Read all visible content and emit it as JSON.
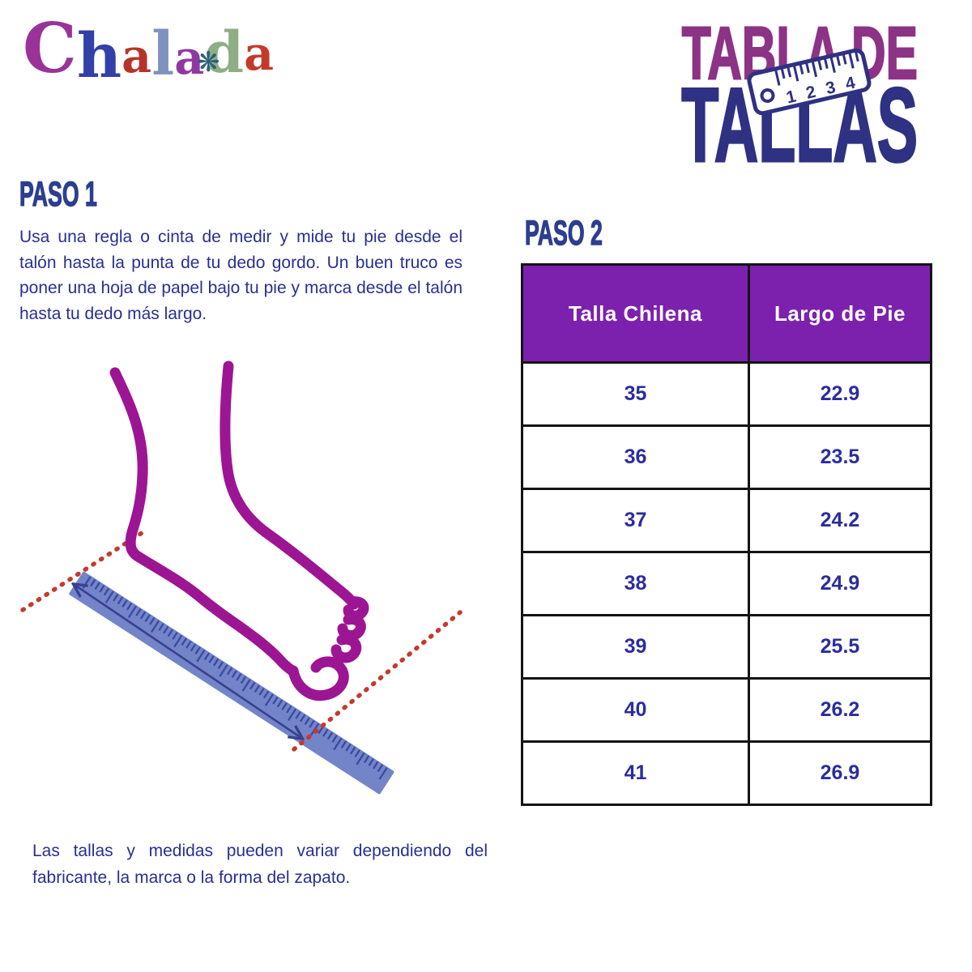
{
  "logo": {
    "name": "Chalada",
    "letters": [
      {
        "ch": "C",
        "color": "#9A3397"
      },
      {
        "ch": "h",
        "color": "#3340A8"
      },
      {
        "ch": "a",
        "color": "#B5342A"
      },
      {
        "ch": "l",
        "color": "#8091BE"
      },
      {
        "ch": "a",
        "color": "#9038A2"
      },
      {
        "ch": "d",
        "color": "#8FAE85"
      },
      {
        "ch": "a",
        "color": "#C23B28"
      }
    ],
    "flower_glyph": "❋",
    "flower_color": "#2C6080"
  },
  "title": {
    "line1": "TABLA DE",
    "line1_color": "#8D3385",
    "line2": "TALLAS",
    "line2_color": "#2F3182",
    "ruler_icon_numbers": [
      "1",
      "2",
      "3",
      "4"
    ],
    "ruler_icon_color": "#2F3182"
  },
  "step1": {
    "heading": "PASO 1",
    "body": "Usa una regla o cinta de medir y mide tu pie desde el talón hasta la punta de tu dedo gordo. Un buen truco es poner una hoja de papel bajo tu pie y marca desde el talón hasta tu dedo más largo."
  },
  "step2": {
    "heading": "PASO 2"
  },
  "size_table": {
    "header": [
      "Talla Chilena",
      "Largo de Pie"
    ],
    "header_bg": "#7C21AD",
    "header_text_color": "#FFFFFF",
    "cell_text_color": "#2A2D9E",
    "border_color": "#141414",
    "rows": [
      [
        "35",
        "22.9"
      ],
      [
        "36",
        "23.5"
      ],
      [
        "37",
        "24.2"
      ],
      [
        "38",
        "24.9"
      ],
      [
        "39",
        "25.5"
      ],
      [
        "40",
        "26.2"
      ],
      [
        "41",
        "26.9"
      ]
    ]
  },
  "disclaimer": "Las tallas y medidas pueden variar dependiendo del fabricante, la marca o la forma del zapato.",
  "text": {
    "body_color": "#2A2F91",
    "heading_color": "#2C3E8F"
  },
  "illustration": {
    "foot_color": "#9C1693",
    "ruler_fill": "#7385C8",
    "ruler_tick_color": "#3D4BA3",
    "guide_line_color": "#C43A2E",
    "arrow_color": "#3A4090"
  }
}
